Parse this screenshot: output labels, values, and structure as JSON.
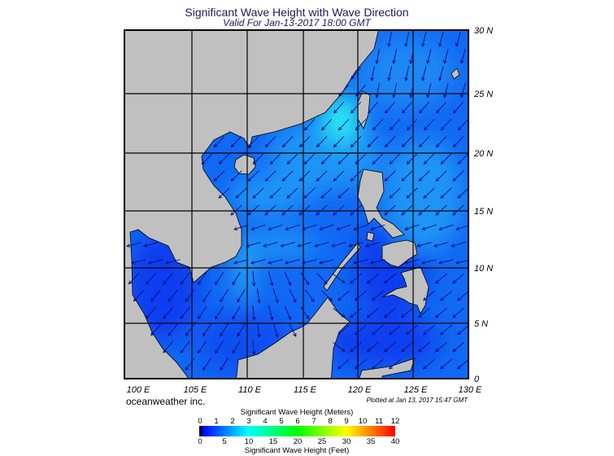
{
  "header": {
    "title": "Significant Wave Height with Wave Direction",
    "subtitle": "Valid For Jan-13-2017 18:00 GMT"
  },
  "map": {
    "lat_labels": [
      "30 N",
      "25 N",
      "20 N",
      "15 N",
      "10 N",
      "5 N",
      "0"
    ],
    "lon_labels": [
      "100 E",
      "105 E",
      "110 E",
      "115 E",
      "120 E",
      "125 E",
      "130 E"
    ],
    "land_color": "#c0c0c0",
    "arrow_color": "#0a0a7a",
    "ocean_colors": [
      "#0a3ef0",
      "#1169f4",
      "#1e95f6",
      "#2af0f2"
    ]
  },
  "footer": {
    "credit": "oceanweather inc.",
    "plotted": "Plotted at Jan 13, 2017 15:47 GMT"
  },
  "legend": {
    "meters_title": "Significant Wave Height (Meters)",
    "meters_ticks": [
      "0",
      "1",
      "2",
      "3",
      "4",
      "5",
      "6",
      "7",
      "8",
      "9",
      "10",
      "11",
      "12"
    ],
    "feet_title": "Significant Wave Height (Feet)",
    "feet_ticks": [
      "0",
      "5",
      "10",
      "15",
      "20",
      "25",
      "30",
      "35",
      "40"
    ],
    "colors": [
      "#000000",
      "#0000ff",
      "#00ffff",
      "#00ff00",
      "#ffff00",
      "#ff0000"
    ]
  }
}
